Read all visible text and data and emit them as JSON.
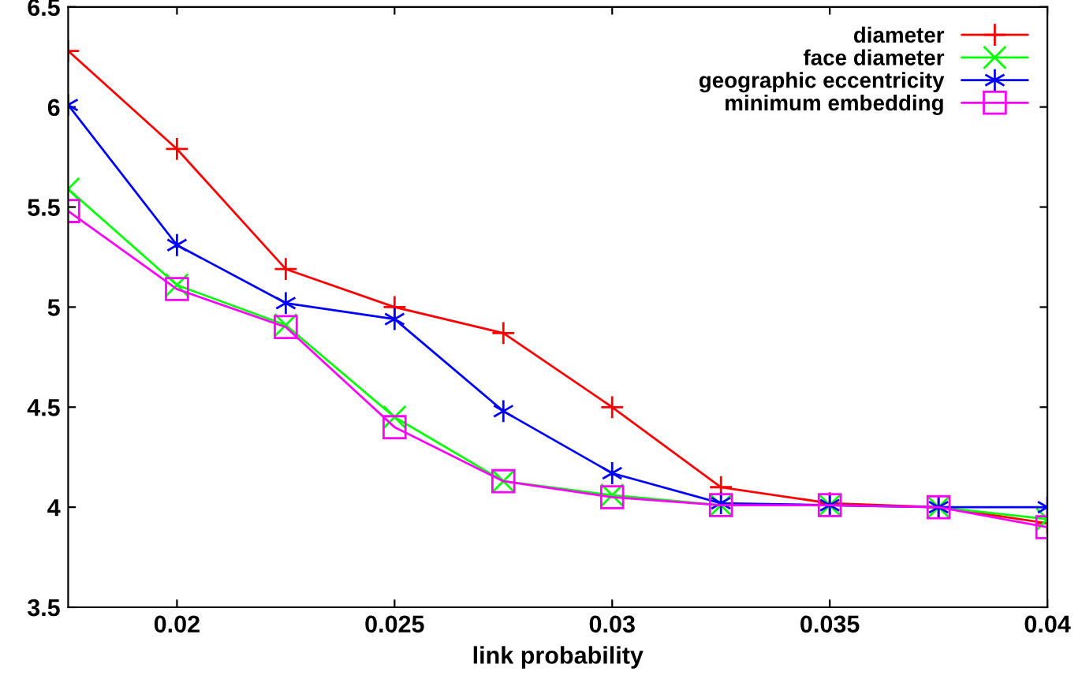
{
  "chart_data": {
    "type": "line",
    "xlabel": "link probability",
    "xlim": [
      0.0175,
      0.04
    ],
    "xticks": [
      0.02,
      0.025,
      0.03,
      0.035,
      0.04
    ],
    "ylim": [
      3.5,
      6.5
    ],
    "yticks": [
      3.5,
      4,
      4.5,
      5,
      5.5,
      6,
      6.5
    ],
    "grid": false,
    "legend": "top right",
    "line_style": "solid",
    "x": [
      0.0175,
      0.02,
      0.0225,
      0.025,
      0.0275,
      0.03,
      0.0325,
      0.035,
      0.0375,
      0.04
    ],
    "series": [
      {
        "name": "diameter",
        "color": "#ff0000",
        "marker": "plus",
        "values": [
          6.28,
          5.79,
          5.19,
          5.0,
          4.87,
          4.5,
          4.1,
          4.02,
          4.0,
          3.92
        ]
      },
      {
        "name": "face diameter",
        "color": "#00ff00",
        "marker": "x",
        "values": [
          5.59,
          5.11,
          4.91,
          4.45,
          4.13,
          4.06,
          4.01,
          4.01,
          4.0,
          3.94
        ]
      },
      {
        "name": "geographic eccentricity",
        "color": "#0000ff",
        "marker": "cross",
        "values": [
          6.01,
          5.31,
          5.02,
          4.94,
          4.48,
          4.17,
          4.02,
          4.01,
          4.0,
          4.0
        ]
      },
      {
        "name": "minimum embedding",
        "color": "#ff00ff",
        "marker": "square",
        "values": [
          5.48,
          5.09,
          4.9,
          4.4,
          4.13,
          4.05,
          4.01,
          4.01,
          4.0,
          3.9
        ]
      }
    ]
  }
}
